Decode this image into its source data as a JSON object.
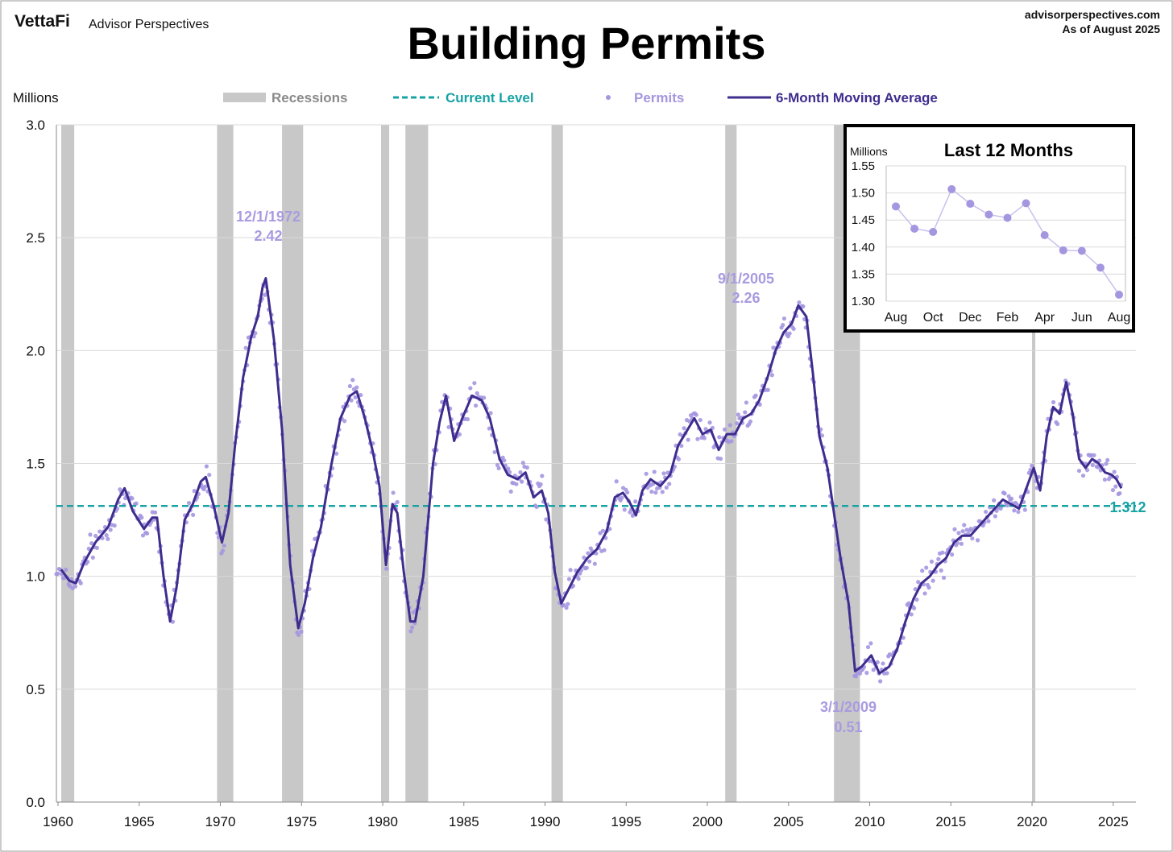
{
  "header": {
    "brand": "VettaFi",
    "brand_sub": "Advisor Perspectives",
    "site": "advisorperspectives.com",
    "asof": "As of August 2025"
  },
  "chart_data": {
    "type": "line",
    "title": "Building Permits",
    "ylabel": "Millions",
    "xlim": [
      1960,
      2026.5
    ],
    "ylim": [
      0,
      3.0
    ],
    "y_ticks": [
      "0.0",
      "0.5",
      "1.0",
      "1.5",
      "2.0",
      "2.5",
      "3.0"
    ],
    "x_ticks": [
      "1960",
      "1965",
      "1970",
      "1975",
      "1980",
      "1985",
      "1990",
      "1995",
      "2000",
      "2005",
      "2010",
      "2015",
      "2020",
      "2025"
    ],
    "legend": [
      "Recessions",
      "Current Level",
      "Permits",
      "6-Month Moving Average"
    ],
    "colors": {
      "recession": "#c8c8c8",
      "current": "#17a2a4",
      "permits": "#a596e0",
      "ma": "#3f2d8e",
      "grid": "#d9d9d9",
      "annotation": "#a99be0"
    },
    "current_level": 1.312,
    "current_label": "1.312",
    "recessions": [
      [
        1960.3,
        1961.1
      ],
      [
        1969.9,
        1970.9
      ],
      [
        1973.9,
        1975.2
      ],
      [
        1980.0,
        1980.5
      ],
      [
        1981.5,
        1982.9
      ],
      [
        1990.5,
        1991.2
      ],
      [
        2001.2,
        2001.9
      ],
      [
        2007.9,
        2009.5
      ],
      [
        2020.1,
        2020.3
      ]
    ],
    "moving_average_keypoints": [
      [
        1960.3,
        1.03
      ],
      [
        1960.8,
        0.98
      ],
      [
        1961.2,
        0.97
      ],
      [
        1961.7,
        1.06
      ],
      [
        1962.4,
        1.15
      ],
      [
        1963.2,
        1.22
      ],
      [
        1963.8,
        1.34
      ],
      [
        1964.2,
        1.39
      ],
      [
        1964.7,
        1.29
      ],
      [
        1965.4,
        1.21
      ],
      [
        1965.9,
        1.26
      ],
      [
        1966.2,
        1.26
      ],
      [
        1966.6,
        1.0
      ],
      [
        1967.0,
        0.8
      ],
      [
        1967.4,
        0.95
      ],
      [
        1967.9,
        1.25
      ],
      [
        1968.4,
        1.32
      ],
      [
        1968.9,
        1.42
      ],
      [
        1969.2,
        1.44
      ],
      [
        1969.7,
        1.31
      ],
      [
        1970.2,
        1.15
      ],
      [
        1970.6,
        1.28
      ],
      [
        1971.0,
        1.58
      ],
      [
        1971.5,
        1.88
      ],
      [
        1972.0,
        2.06
      ],
      [
        1972.4,
        2.15
      ],
      [
        1972.7,
        2.28
      ],
      [
        1972.9,
        2.32
      ],
      [
        1973.4,
        2.05
      ],
      [
        1973.9,
        1.65
      ],
      [
        1974.4,
        1.05
      ],
      [
        1974.9,
        0.77
      ],
      [
        1975.3,
        0.88
      ],
      [
        1975.8,
        1.08
      ],
      [
        1976.3,
        1.22
      ],
      [
        1976.9,
        1.48
      ],
      [
        1977.5,
        1.7
      ],
      [
        1978.1,
        1.8
      ],
      [
        1978.5,
        1.82
      ],
      [
        1979.0,
        1.7
      ],
      [
        1979.5,
        1.55
      ],
      [
        1979.9,
        1.4
      ],
      [
        1980.3,
        1.05
      ],
      [
        1980.7,
        1.32
      ],
      [
        1981.0,
        1.28
      ],
      [
        1981.4,
        1.02
      ],
      [
        1981.8,
        0.8
      ],
      [
        1982.1,
        0.8
      ],
      [
        1982.6,
        1.0
      ],
      [
        1983.2,
        1.5
      ],
      [
        1983.6,
        1.68
      ],
      [
        1984.0,
        1.8
      ],
      [
        1984.5,
        1.6
      ],
      [
        1985.0,
        1.7
      ],
      [
        1985.6,
        1.8
      ],
      [
        1986.2,
        1.78
      ],
      [
        1986.7,
        1.7
      ],
      [
        1987.3,
        1.52
      ],
      [
        1987.8,
        1.45
      ],
      [
        1988.4,
        1.43
      ],
      [
        1988.9,
        1.46
      ],
      [
        1989.4,
        1.35
      ],
      [
        1989.9,
        1.38
      ],
      [
        1990.3,
        1.28
      ],
      [
        1990.7,
        1.02
      ],
      [
        1991.1,
        0.88
      ],
      [
        1991.6,
        0.95
      ],
      [
        1992.1,
        1.02
      ],
      [
        1992.7,
        1.08
      ],
      [
        1993.3,
        1.12
      ],
      [
        1993.9,
        1.2
      ],
      [
        1994.4,
        1.35
      ],
      [
        1994.9,
        1.37
      ],
      [
        1995.3,
        1.33
      ],
      [
        1995.7,
        1.27
      ],
      [
        1996.1,
        1.38
      ],
      [
        1996.6,
        1.43
      ],
      [
        1997.2,
        1.4
      ],
      [
        1997.8,
        1.45
      ],
      [
        1998.3,
        1.58
      ],
      [
        1998.8,
        1.64
      ],
      [
        1999.3,
        1.7
      ],
      [
        1999.8,
        1.63
      ],
      [
        2000.3,
        1.65
      ],
      [
        2000.8,
        1.56
      ],
      [
        2001.3,
        1.63
      ],
      [
        2001.8,
        1.63
      ],
      [
        2002.3,
        1.7
      ],
      [
        2002.8,
        1.72
      ],
      [
        2003.3,
        1.78
      ],
      [
        2003.8,
        1.88
      ],
      [
        2004.3,
        2.0
      ],
      [
        2004.8,
        2.08
      ],
      [
        2005.3,
        2.12
      ],
      [
        2005.7,
        2.2
      ],
      [
        2006.2,
        2.15
      ],
      [
        2006.6,
        1.9
      ],
      [
        2007.0,
        1.62
      ],
      [
        2007.5,
        1.48
      ],
      [
        2007.9,
        1.28
      ],
      [
        2008.3,
        1.08
      ],
      [
        2008.8,
        0.88
      ],
      [
        2009.2,
        0.58
      ],
      [
        2009.6,
        0.6
      ],
      [
        2010.2,
        0.65
      ],
      [
        2010.7,
        0.57
      ],
      [
        2011.3,
        0.6
      ],
      [
        2011.8,
        0.68
      ],
      [
        2012.3,
        0.8
      ],
      [
        2012.8,
        0.9
      ],
      [
        2013.3,
        0.97
      ],
      [
        2013.8,
        1.0
      ],
      [
        2014.3,
        1.05
      ],
      [
        2014.8,
        1.08
      ],
      [
        2015.3,
        1.15
      ],
      [
        2015.8,
        1.18
      ],
      [
        2016.3,
        1.18
      ],
      [
        2016.8,
        1.22
      ],
      [
        2017.3,
        1.26
      ],
      [
        2017.8,
        1.3
      ],
      [
        2018.3,
        1.34
      ],
      [
        2018.8,
        1.32
      ],
      [
        2019.3,
        1.3
      ],
      [
        2019.8,
        1.4
      ],
      [
        2020.2,
        1.48
      ],
      [
        2020.6,
        1.38
      ],
      [
        2021.0,
        1.62
      ],
      [
        2021.4,
        1.75
      ],
      [
        2021.8,
        1.72
      ],
      [
        2022.2,
        1.86
      ],
      [
        2022.6,
        1.72
      ],
      [
        2023.0,
        1.52
      ],
      [
        2023.4,
        1.48
      ],
      [
        2023.8,
        1.52
      ],
      [
        2024.2,
        1.5
      ],
      [
        2024.6,
        1.46
      ],
      [
        2025.0,
        1.45
      ],
      [
        2025.3,
        1.43
      ],
      [
        2025.6,
        1.39
      ]
    ],
    "annotations": [
      {
        "date": "12/1/1972",
        "value": "2.42"
      },
      {
        "date": "9/1/2005",
        "value": "2.26"
      },
      {
        "date": "3/1/2009",
        "value": "0.51"
      }
    ],
    "inset": {
      "title": "Last 12 Months",
      "ylabel": "Millions",
      "y_ticks": [
        "1.30",
        "1.35",
        "1.40",
        "1.45",
        "1.50",
        "1.55"
      ],
      "x_ticks": [
        "Aug",
        "Oct",
        "Dec",
        "Feb",
        "Apr",
        "Jun",
        "Aug"
      ],
      "ylim": [
        1.3,
        1.55
      ],
      "values": [
        1.475,
        1.434,
        1.428,
        1.507,
        1.48,
        1.46,
        1.454,
        1.481,
        1.422,
        1.394,
        1.393,
        1.362,
        1.312
      ]
    }
  }
}
